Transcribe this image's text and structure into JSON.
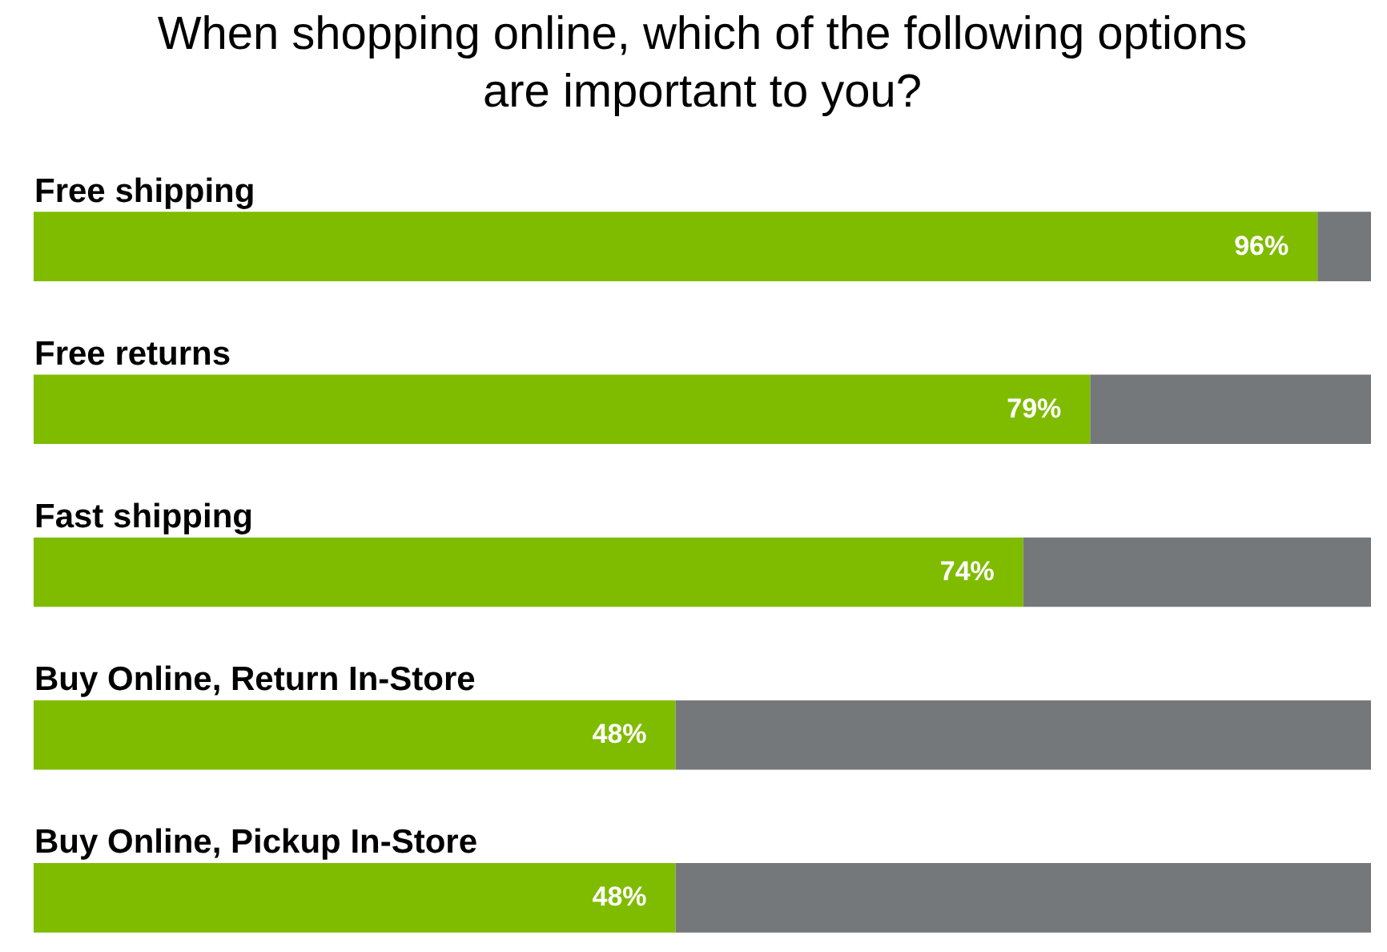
{
  "chart_data": {
    "type": "bar",
    "orientation": "horizontal",
    "stacked": true,
    "title": "When shopping online, which of the following options\nare important to you?",
    "categories": [
      "Free shipping",
      "Free returns",
      "Fast shipping",
      "Buy Online, Return In-Store",
      "Buy Online, Pickup In-Store"
    ],
    "series": [
      {
        "color": "#7fbc00",
        "values": [
          96,
          79,
          74,
          48,
          48
        ],
        "value_labels": [
          "96%",
          "79%",
          "74%",
          "48%",
          "48%"
        ]
      },
      {
        "color": "#75787b",
        "values": [
          4,
          21,
          26,
          52,
          52
        ]
      }
    ],
    "xlim": [
      0,
      100
    ],
    "tick_labels": "y",
    "legend": false
  }
}
